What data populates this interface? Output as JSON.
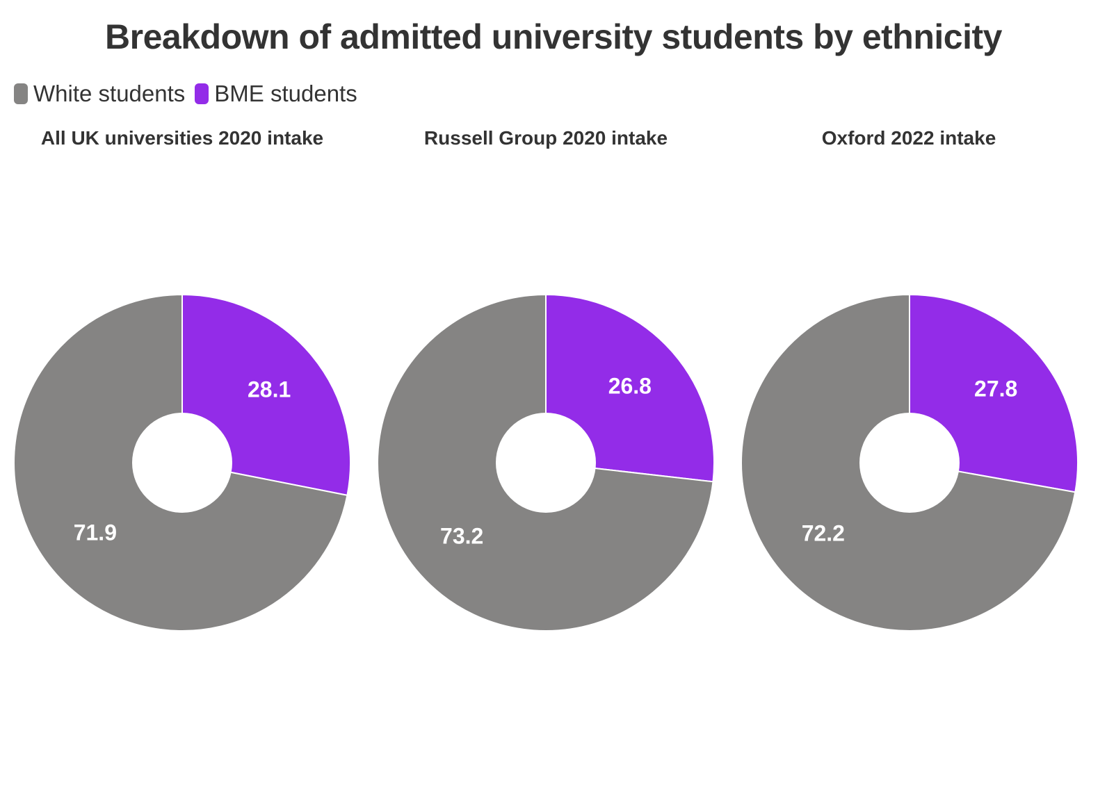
{
  "chart_data": {
    "type": "pie",
    "title": "Breakdown of admitted university students by ethnicity",
    "legend": [
      {
        "name": "White students",
        "color": "#858483"
      },
      {
        "name": "BME students",
        "color": "#932CE8"
      }
    ],
    "legend_position": "top-left",
    "donut": true,
    "charts": [
      {
        "title": "All UK universities 2020 intake",
        "slices": [
          {
            "name": "BME students",
            "value": 28.1,
            "label": "28.1"
          },
          {
            "name": "White students",
            "value": 71.9,
            "label": "71.9"
          }
        ]
      },
      {
        "title": "Russell Group 2020 intake",
        "slices": [
          {
            "name": "BME students",
            "value": 26.8,
            "label": "26.8"
          },
          {
            "name": "White students",
            "value": 73.2,
            "label": "73.2"
          }
        ]
      },
      {
        "title": "Oxford 2022 intake",
        "slices": [
          {
            "name": "BME students",
            "value": 27.8,
            "label": "27.8"
          },
          {
            "name": "White students",
            "value": 72.2,
            "label": "72.2"
          }
        ]
      }
    ]
  }
}
